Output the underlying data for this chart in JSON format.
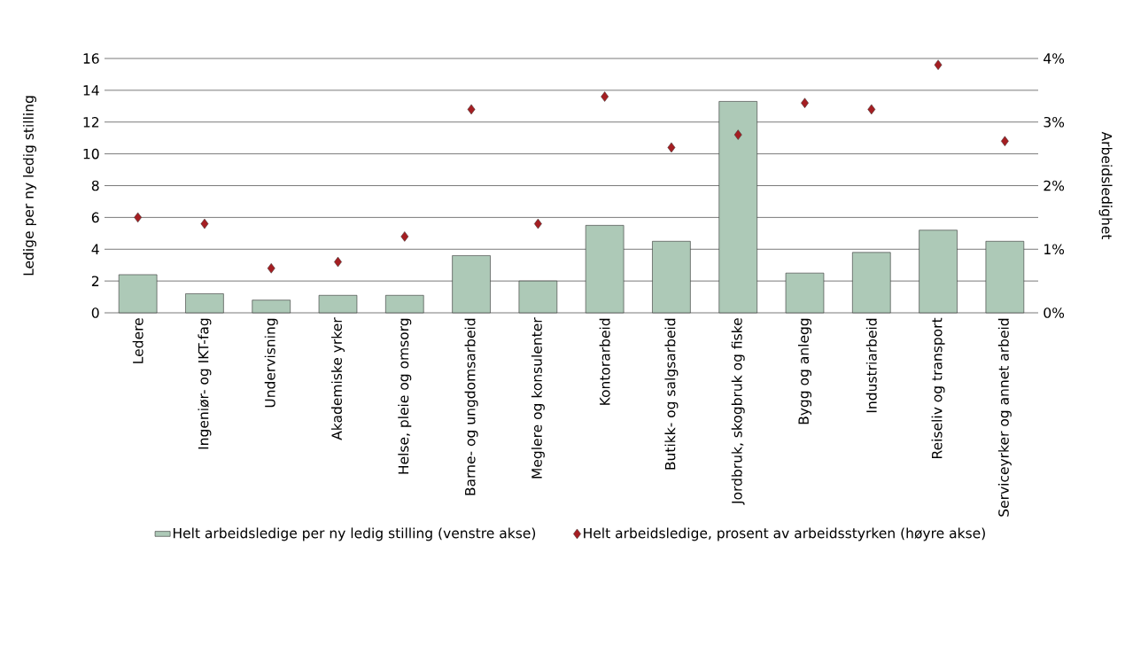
{
  "chart_data": {
    "type": "bar",
    "categories": [
      "Ledere",
      "Ingeniør- og IKT-fag",
      "Undervisning",
      "Akademiske yrker",
      "Helse, pleie og omsorg",
      "Barne- og ungdomsarbeid",
      "Meglere og konsulenter",
      "Kontorarbeid",
      "Butikk- og salgsarbeid",
      "Jordbruk, skogbruk og fiske",
      "Bygg og anlegg",
      "Industriarbeid",
      "Reiseliv og transport",
      "Serviceyrker og annet arbeid"
    ],
    "ylabel": "Ledige per ny ledig stilling",
    "y2label": "Arbeidsledighet",
    "ylim": [
      0,
      16
    ],
    "yticks": [
      0,
      2,
      4,
      6,
      8,
      10,
      12,
      14,
      16
    ],
    "y2lim": [
      0,
      4
    ],
    "y2ticks": [
      {
        "value": 0,
        "label": "0%"
      },
      {
        "value": 1,
        "label": "1%"
      },
      {
        "value": 2,
        "label": "2%"
      },
      {
        "value": 3,
        "label": "3%"
      },
      {
        "value": 4,
        "label": "4%"
      }
    ],
    "grid": "y",
    "legend": "bottom",
    "series": [
      {
        "name": "Helt arbeidsledige per ny ledig stilling (venstre akse)",
        "color": "#adc9b7",
        "values": [
          2.4,
          1.2,
          0.8,
          1.1,
          1.1,
          3.6,
          2.0,
          5.5,
          4.5,
          13.3,
          2.5,
          3.8,
          5.2,
          4.5
        ]
      },
      {
        "name": "Helt arbeidsledige, prosent av arbeidsstyrken (høyre akse)",
        "type": "scatter",
        "axis": "y2",
        "marker": "diamond",
        "color": "#a51e22",
        "values": [
          1.5,
          1.4,
          0.7,
          0.8,
          1.2,
          3.2,
          1.4,
          3.4,
          2.6,
          2.8,
          3.3,
          3.2,
          3.9,
          2.7
        ]
      }
    ]
  }
}
